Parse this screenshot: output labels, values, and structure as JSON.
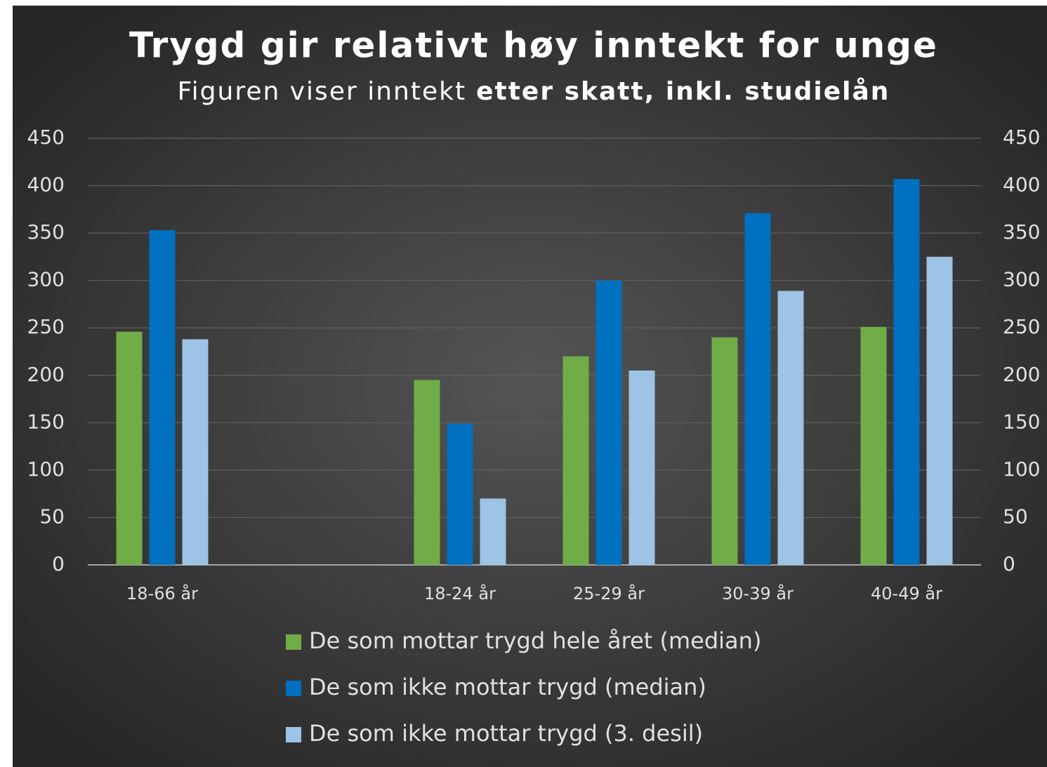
{
  "chart_data": {
    "type": "bar",
    "title": "Trygd gir relativt høy inntekt for unge",
    "subtitle": [
      "Figuren viser inntekt",
      "etter skatt, inkl. studielån"
    ],
    "categories": [
      "18-66 år",
      null,
      "18-24 år",
      "25-29 år",
      "30-39 år",
      "40-49 år"
    ],
    "series": [
      {
        "name": "De som mottar trygd hele året (median)",
        "color": "#70ad47",
        "values": [
          246,
          null,
          195,
          220,
          240,
          251
        ]
      },
      {
        "name": "De som ikke mottar trygd (median)",
        "color": "#0070c0",
        "values": [
          353,
          null,
          149,
          300,
          371,
          407
        ]
      },
      {
        "name": "De som ikke mottar trygd (3. desil)",
        "color": "#9dc3e6",
        "values": [
          238,
          null,
          70,
          205,
          289,
          325
        ]
      }
    ],
    "ylim": [
      0,
      450
    ],
    "yticks": [
      0,
      50,
      100,
      150,
      200,
      250,
      300,
      350,
      400,
      450
    ],
    "y2lim": [
      0,
      450
    ],
    "y2ticks": [
      0,
      50,
      100,
      150,
      200,
      250,
      300,
      350,
      400,
      450
    ],
    "grid": true,
    "legend": "bottom"
  }
}
